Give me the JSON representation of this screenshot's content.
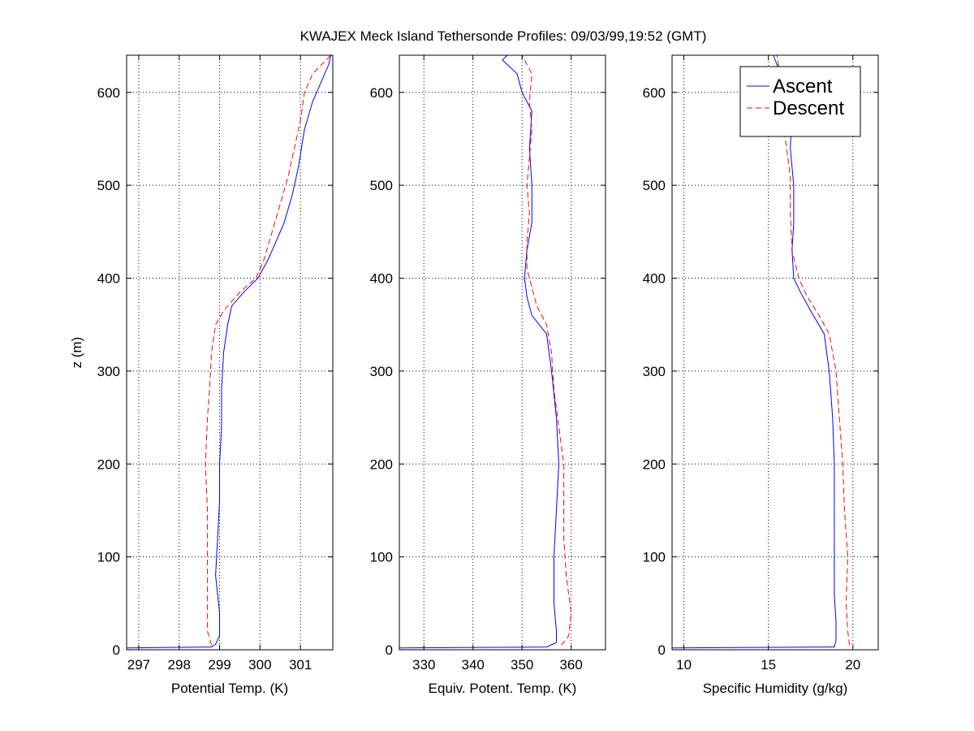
{
  "chart_data": {
    "type": "line",
    "title": "KWAJEX Meck Island Tethersonde Profiles: 09/03/99,19:52 (GMT)",
    "ylabel": "z (m)",
    "ylim": [
      0,
      640
    ],
    "yticks": [
      0,
      100,
      200,
      300,
      400,
      500,
      600
    ],
    "legend": {
      "placement": "top-right of third panel",
      "entries": [
        {
          "name": "Ascent",
          "color": "#0000ff",
          "style": "solid"
        },
        {
          "name": "Descent",
          "color": "#ff0000",
          "style": "dashed"
        }
      ]
    },
    "panels": [
      {
        "xlabel": "Potential Temp. (K)",
        "xlim": [
          296.7,
          301.8
        ],
        "xticks": [
          297,
          298,
          299,
          300,
          301
        ],
        "grid": true,
        "series": [
          {
            "name": "Ascent",
            "points": [
              [
                296.7,
                2
              ],
              [
                298.8,
                3
              ],
              [
                298.9,
                6
              ],
              [
                299.0,
                15
              ],
              [
                299.0,
                40
              ],
              [
                298.9,
                80
              ],
              [
                298.95,
                120
              ],
              [
                299.0,
                160
              ],
              [
                299.0,
                200
              ],
              [
                299.05,
                240
              ],
              [
                299.05,
                280
              ],
              [
                299.1,
                320
              ],
              [
                299.2,
                350
              ],
              [
                299.3,
                370
              ],
              [
                299.6,
                385
              ],
              [
                299.95,
                400
              ],
              [
                300.2,
                420
              ],
              [
                300.4,
                440
              ],
              [
                300.6,
                460
              ],
              [
                300.8,
                490
              ],
              [
                300.95,
                520
              ],
              [
                301.1,
                560
              ],
              [
                301.3,
                590
              ],
              [
                301.5,
                610
              ],
              [
                301.7,
                630
              ],
              [
                301.75,
                640
              ]
            ]
          },
          {
            "name": "Descent",
            "points": [
              [
                298.8,
                5
              ],
              [
                298.7,
                20
              ],
              [
                298.7,
                50
              ],
              [
                298.7,
                100
              ],
              [
                298.7,
                150
              ],
              [
                298.65,
                200
              ],
              [
                298.7,
                250
              ],
              [
                298.75,
                280
              ],
              [
                298.8,
                320
              ],
              [
                298.9,
                350
              ],
              [
                299.1,
                365
              ],
              [
                299.5,
                385
              ],
              [
                299.9,
                400
              ],
              [
                300.1,
                420
              ],
              [
                300.3,
                450
              ],
              [
                300.5,
                480
              ],
              [
                300.7,
                510
              ],
              [
                300.85,
                540
              ],
              [
                301.0,
                570
              ],
              [
                301.1,
                600
              ],
              [
                301.3,
                620
              ],
              [
                301.75,
                640
              ]
            ]
          }
        ]
      },
      {
        "xlabel": "Equiv. Potent. Temp. (K)",
        "xlim": [
          325,
          367
        ],
        "xticks": [
          330,
          340,
          350,
          360
        ],
        "grid": true,
        "series": [
          {
            "name": "Ascent",
            "points": [
              [
                325,
                2
              ],
              [
                355,
                3
              ],
              [
                357,
                8
              ],
              [
                357,
                20
              ],
              [
                356.5,
                50
              ],
              [
                356.5,
                100
              ],
              [
                357,
                150
              ],
              [
                357.5,
                200
              ],
              [
                357,
                250
              ],
              [
                356,
                300
              ],
              [
                355,
                340
              ],
              [
                352,
                360
              ],
              [
                351,
                380
              ],
              [
                350.5,
                400
              ],
              [
                351,
                430
              ],
              [
                352,
                460
              ],
              [
                352,
                500
              ],
              [
                351.5,
                540
              ],
              [
                352,
                580
              ],
              [
                350,
                600
              ],
              [
                349,
                620
              ],
              [
                346,
                635
              ],
              [
                347,
                640
              ]
            ]
          },
          {
            "name": "Descent",
            "points": [
              [
                358,
                5
              ],
              [
                359.5,
                15
              ],
              [
                360,
                40
              ],
              [
                359,
                80
              ],
              [
                358.5,
                120
              ],
              [
                358.5,
                160
              ],
              [
                358.5,
                200
              ],
              [
                357.5,
                240
              ],
              [
                356.5,
                280
              ],
              [
                356,
                320
              ],
              [
                355,
                350
              ],
              [
                353,
                370
              ],
              [
                352,
                390
              ],
              [
                351,
                410
              ],
              [
                351,
                440
              ],
              [
                351.5,
                470
              ],
              [
                351,
                500
              ],
              [
                351.5,
                530
              ],
              [
                352,
                560
              ],
              [
                351.5,
                590
              ],
              [
                352,
                620
              ],
              [
                350,
                640
              ]
            ]
          }
        ]
      },
      {
        "xlabel": "Specific Humidity (g/kg)",
        "xlim": [
          9.3,
          21.5
        ],
        "xticks": [
          10,
          15,
          20
        ],
        "grid": true,
        "series": [
          {
            "name": "Ascent",
            "points": [
              [
                9.3,
                2
              ],
              [
                18.9,
                3
              ],
              [
                19.0,
                10
              ],
              [
                19.0,
                30
              ],
              [
                18.9,
                60
              ],
              [
                18.9,
                100
              ],
              [
                18.9,
                150
              ],
              [
                18.9,
                200
              ],
              [
                18.8,
                250
              ],
              [
                18.6,
                300
              ],
              [
                18.3,
                340
              ],
              [
                17.5,
                365
              ],
              [
                16.9,
                385
              ],
              [
                16.5,
                400
              ],
              [
                16.4,
                430
              ],
              [
                16.5,
                460
              ],
              [
                16.5,
                500
              ],
              [
                16.3,
                540
              ],
              [
                16.4,
                580
              ],
              [
                16.2,
                610
              ],
              [
                15.5,
                630
              ],
              [
                15.3,
                640
              ]
            ]
          },
          {
            "name": "Descent",
            "points": [
              [
                19.8,
                5
              ],
              [
                19.7,
                20
              ],
              [
                19.6,
                50
              ],
              [
                19.7,
                100
              ],
              [
                19.5,
                150
              ],
              [
                19.4,
                200
              ],
              [
                19.2,
                250
              ],
              [
                19.0,
                300
              ],
              [
                18.6,
                340
              ],
              [
                18.0,
                360
              ],
              [
                17.3,
                380
              ],
              [
                16.8,
                400
              ],
              [
                16.4,
                430
              ],
              [
                16.3,
                470
              ],
              [
                16.3,
                510
              ],
              [
                16.0,
                550
              ],
              [
                15.9,
                590
              ],
              [
                15.7,
                620
              ],
              [
                15.5,
                640
              ]
            ]
          }
        ]
      }
    ]
  }
}
